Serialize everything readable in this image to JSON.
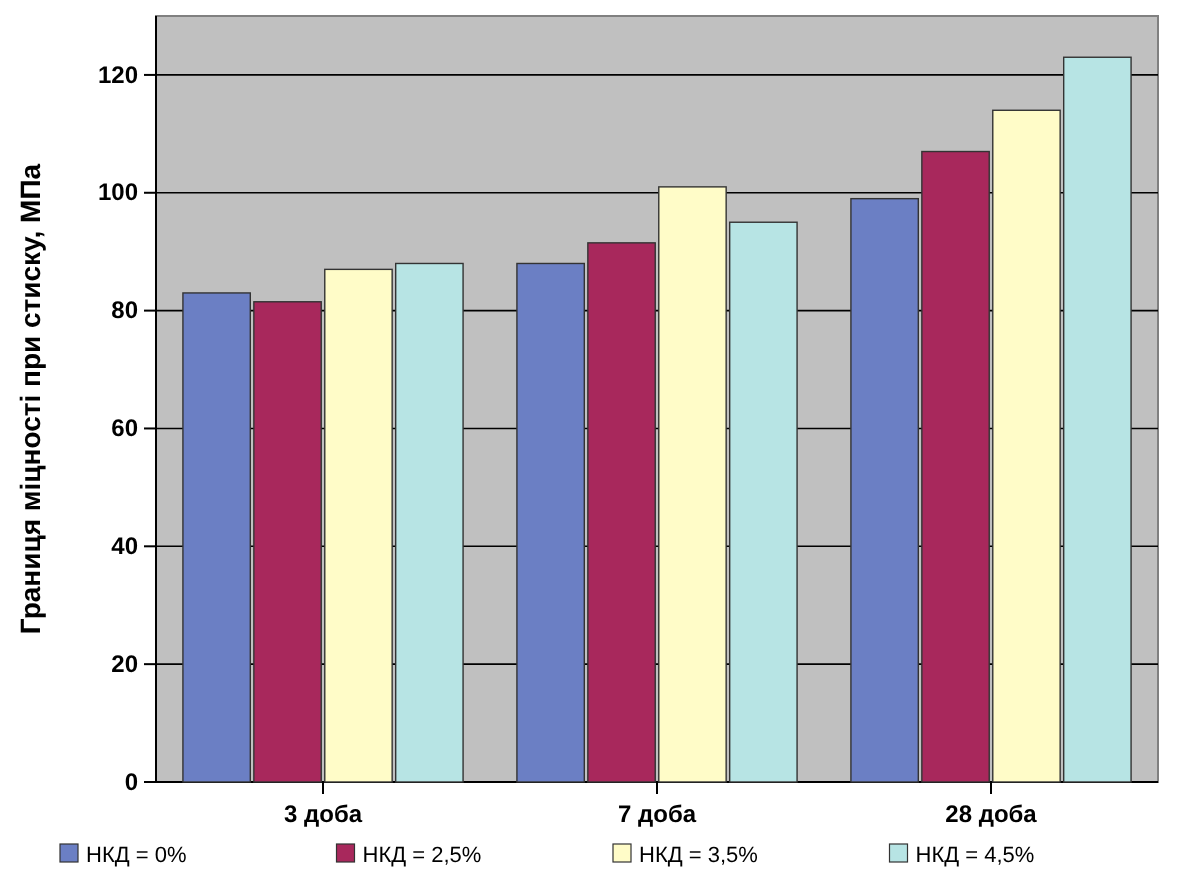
{
  "chart_data": {
    "type": "bar",
    "ylabel": "Границя міцності при стиску, МПа",
    "categories": [
      "3 доба",
      "7 доба",
      "28 доба"
    ],
    "series": [
      {
        "name": "НКД = 0%",
        "color": "#6b7fc4",
        "values": [
          83,
          88,
          99
        ]
      },
      {
        "name": "НКД = 2,5%",
        "color": "#a8285c",
        "values": [
          81.5,
          91.5,
          107
        ]
      },
      {
        "name": "НКД = 3,5%",
        "color": "#fffcc8",
        "values": [
          87,
          101,
          114
        ]
      },
      {
        "name": "НКД = 4,5%",
        "color": "#b7e4e4",
        "values": [
          88,
          95,
          123
        ]
      }
    ],
    "ylim": [
      0,
      130
    ],
    "yticks": [
      0,
      20,
      40,
      60,
      80,
      100,
      120
    ],
    "grid": "y",
    "legend": "bottom"
  }
}
